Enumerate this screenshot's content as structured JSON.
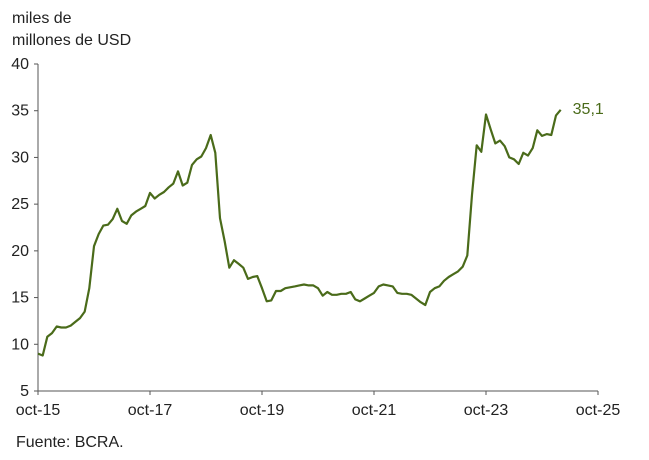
{
  "chart_data": {
    "type": "line",
    "ylabel_lines": [
      "miles de",
      "millones de USD"
    ],
    "source": "Fuente: BCRA.",
    "ylim": [
      5,
      40
    ],
    "yticks": [
      5,
      10,
      15,
      20,
      25,
      30,
      35,
      40
    ],
    "xlim": [
      "2015-10",
      "2025-10"
    ],
    "xticks": [
      {
        "label": "oct-15",
        "date": "2015-10"
      },
      {
        "label": "oct-17",
        "date": "2017-10"
      },
      {
        "label": "oct-19",
        "date": "2019-10"
      },
      {
        "label": "oct-21",
        "date": "2021-10"
      },
      {
        "label": "oct-23",
        "date": "2023-10"
      },
      {
        "label": "oct-25",
        "date": "2025-10"
      }
    ],
    "series": [
      {
        "color": "#4a6b1a",
        "end_label": "35,1",
        "points": [
          [
            "2015-10",
            9.0
          ],
          [
            "2015-11",
            8.8
          ],
          [
            "2015-12",
            10.8
          ],
          [
            "2016-01",
            11.2
          ],
          [
            "2016-02",
            11.9
          ],
          [
            "2016-03",
            11.8
          ],
          [
            "2016-04",
            11.8
          ],
          [
            "2016-05",
            12.0
          ],
          [
            "2016-06",
            12.4
          ],
          [
            "2016-07",
            12.8
          ],
          [
            "2016-08",
            13.5
          ],
          [
            "2016-09",
            16.0
          ],
          [
            "2016-10",
            20.5
          ],
          [
            "2016-11",
            21.8
          ],
          [
            "2016-12",
            22.7
          ],
          [
            "2017-01",
            22.8
          ],
          [
            "2017-02",
            23.4
          ],
          [
            "2017-03",
            24.5
          ],
          [
            "2017-04",
            23.2
          ],
          [
            "2017-05",
            22.9
          ],
          [
            "2017-06",
            23.8
          ],
          [
            "2017-07",
            24.2
          ],
          [
            "2017-08",
            24.5
          ],
          [
            "2017-09",
            24.8
          ],
          [
            "2017-10",
            26.2
          ],
          [
            "2017-11",
            25.6
          ],
          [
            "2017-12",
            26.0
          ],
          [
            "2018-01",
            26.3
          ],
          [
            "2018-02",
            26.8
          ],
          [
            "2018-03",
            27.2
          ],
          [
            "2018-04",
            28.5
          ],
          [
            "2018-05",
            27.0
          ],
          [
            "2018-06",
            27.3
          ],
          [
            "2018-07",
            29.2
          ],
          [
            "2018-08",
            29.8
          ],
          [
            "2018-09",
            30.1
          ],
          [
            "2018-10",
            31.0
          ],
          [
            "2018-11",
            32.4
          ],
          [
            "2018-12",
            30.5
          ],
          [
            "2019-01",
            23.5
          ],
          [
            "2019-02",
            21.0
          ],
          [
            "2019-03",
            18.2
          ],
          [
            "2019-04",
            19.0
          ],
          [
            "2019-05",
            18.6
          ],
          [
            "2019-06",
            18.2
          ],
          [
            "2019-07",
            17.0
          ],
          [
            "2019-08",
            17.2
          ],
          [
            "2019-09",
            17.3
          ],
          [
            "2019-10",
            16.0
          ],
          [
            "2019-11",
            14.6
          ],
          [
            "2019-12",
            14.7
          ],
          [
            "2020-01",
            15.7
          ],
          [
            "2020-02",
            15.7
          ],
          [
            "2020-03",
            16.0
          ],
          [
            "2020-04",
            16.1
          ],
          [
            "2020-05",
            16.2
          ],
          [
            "2020-06",
            16.3
          ],
          [
            "2020-07",
            16.4
          ],
          [
            "2020-08",
            16.3
          ],
          [
            "2020-09",
            16.3
          ],
          [
            "2020-10",
            16.0
          ],
          [
            "2020-11",
            15.2
          ],
          [
            "2020-12",
            15.6
          ],
          [
            "2021-01",
            15.3
          ],
          [
            "2021-02",
            15.3
          ],
          [
            "2021-03",
            15.4
          ],
          [
            "2021-04",
            15.4
          ],
          [
            "2021-05",
            15.6
          ],
          [
            "2021-06",
            14.8
          ],
          [
            "2021-07",
            14.6
          ],
          [
            "2021-08",
            14.9
          ],
          [
            "2021-09",
            15.2
          ],
          [
            "2021-10",
            15.5
          ],
          [
            "2021-11",
            16.2
          ],
          [
            "2021-12",
            16.4
          ],
          [
            "2022-01",
            16.3
          ],
          [
            "2022-02",
            16.2
          ],
          [
            "2022-03",
            15.5
          ],
          [
            "2022-04",
            15.4
          ],
          [
            "2022-05",
            15.4
          ],
          [
            "2022-06",
            15.3
          ],
          [
            "2022-07",
            14.9
          ],
          [
            "2022-08",
            14.5
          ],
          [
            "2022-09",
            14.2
          ],
          [
            "2022-10",
            15.6
          ],
          [
            "2022-11",
            16.0
          ],
          [
            "2022-12",
            16.2
          ],
          [
            "2023-01",
            16.8
          ],
          [
            "2023-02",
            17.2
          ],
          [
            "2023-03",
            17.5
          ],
          [
            "2023-04",
            17.8
          ],
          [
            "2023-05",
            18.3
          ],
          [
            "2023-06",
            19.5
          ],
          [
            "2023-07",
            26.0
          ],
          [
            "2023-08",
            31.3
          ],
          [
            "2023-09",
            30.6
          ],
          [
            "2023-10",
            34.6
          ],
          [
            "2023-11",
            33.0
          ],
          [
            "2023-12",
            31.5
          ],
          [
            "2024-01",
            31.8
          ],
          [
            "2024-02",
            31.2
          ],
          [
            "2024-03",
            30.0
          ],
          [
            "2024-04",
            29.8
          ],
          [
            "2024-05",
            29.3
          ],
          [
            "2024-06",
            30.5
          ],
          [
            "2024-07",
            30.2
          ],
          [
            "2024-08",
            31.0
          ],
          [
            "2024-09",
            32.9
          ],
          [
            "2024-10",
            32.3
          ],
          [
            "2024-11",
            32.5
          ],
          [
            "2024-12",
            32.4
          ],
          [
            "2025-01",
            34.5
          ],
          [
            "2025-02",
            35.1
          ]
        ]
      }
    ]
  }
}
